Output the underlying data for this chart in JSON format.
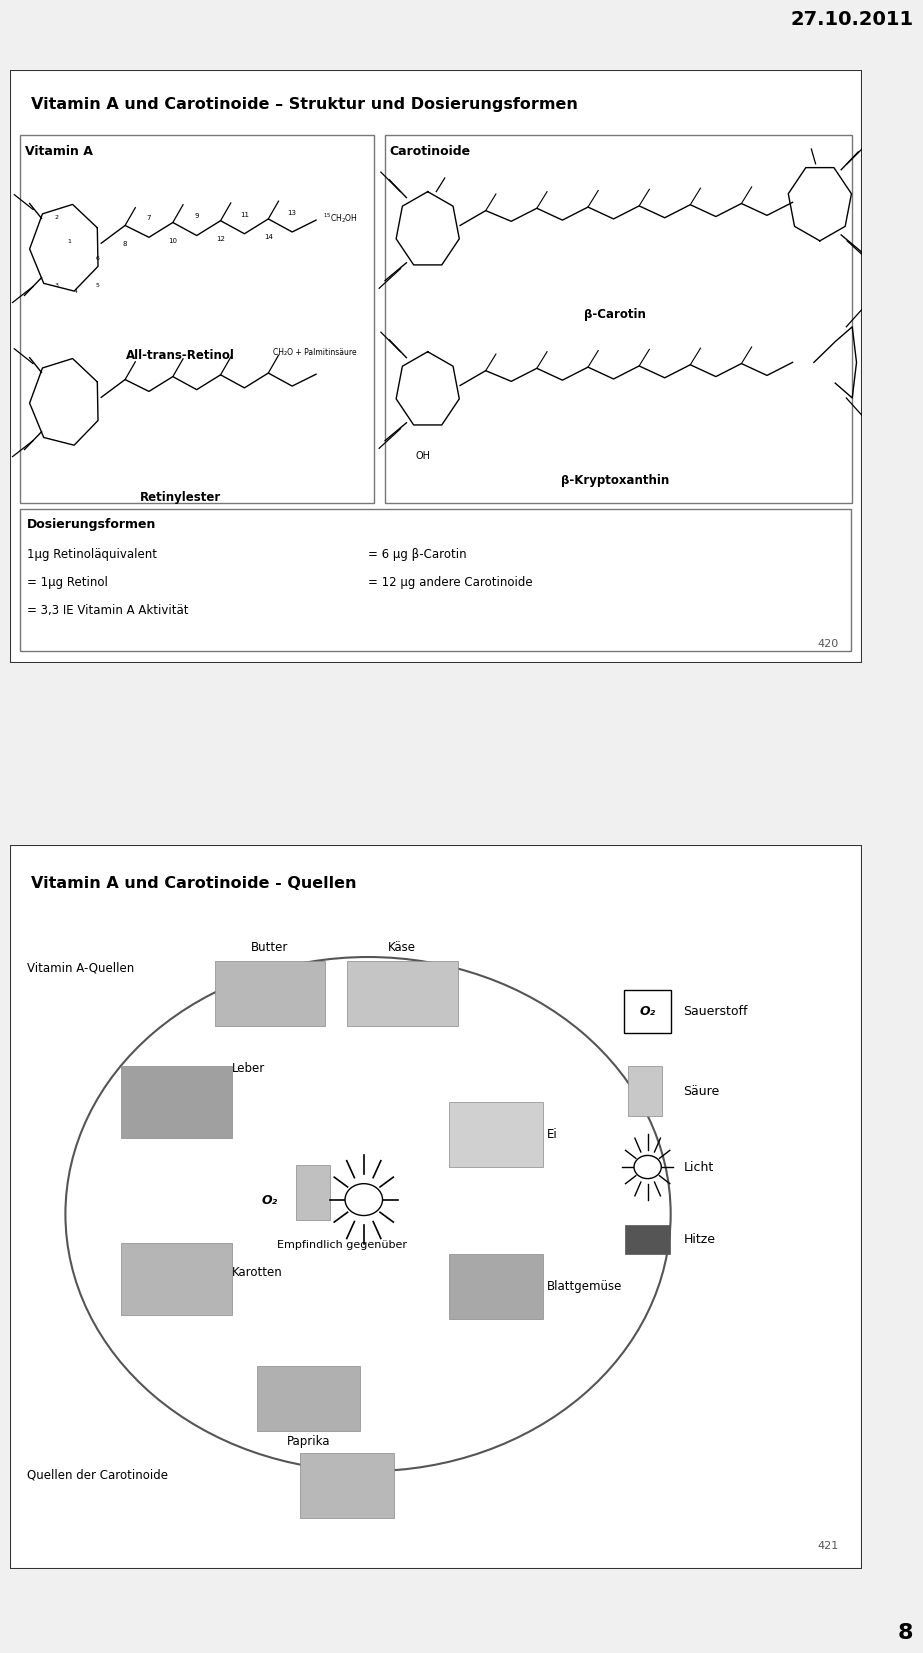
{
  "date_text": "27.10.2011",
  "page_number": "8",
  "bg_color": "#f0f0f0",
  "slide1_title": "Vitamin A und Carotinoide – Struktur und Dosierungsformen",
  "slide1_box1_title": "Vitamin A",
  "slide1_box2_title": "Carotinoide",
  "slide1_label1": "All-trans-Retinol",
  "slide1_label2": "β-Carotin",
  "slide1_label3": "Retinylester",
  "slide1_label4": "β-Kryptoxanthin",
  "slide1_chem1": "CH₂O + Palmitinsäure",
  "slide1_chem2": "OH",
  "slide1_dosierung_title": "Dosierungsformen",
  "slide1_dos_line1": "1μg Retinoläquivalent",
  "slide1_dos_val1": "= 6 μg β-Carotin",
  "slide1_dos_line2": "= 1μg Retinol",
  "slide1_dos_val2": "= 12 μg andere Carotinoide",
  "slide1_dos_line3": "= 3,3 IE Vitamin A Aktivität",
  "slide1_page_num": "420",
  "slide2_title": "Vitamin A und Carotinoide - Quellen",
  "slide2_label_vitaminA": "Vitamin A-Quellen",
  "slide2_label_leber": "Leber",
  "slide2_label_karotten": "Karotten",
  "slide2_label_butter": "Butter",
  "slide2_label_kase": "Käse",
  "slide2_label_ei": "Ei",
  "slide2_label_blatt": "Blattgemüse",
  "slide2_label_paprika": "Paprika",
  "slide2_label_bottom": "Quellen der Carotinoide",
  "slide2_o2": "O₂",
  "slide2_empfindlich": "Empfindlich gegenüber",
  "slide2_sauerstoff": "Sauerstoff",
  "slide2_saure": "Säure",
  "slide2_licht": "Licht",
  "slide2_hitze": "Hitze",
  "slide2_page_num": "421"
}
